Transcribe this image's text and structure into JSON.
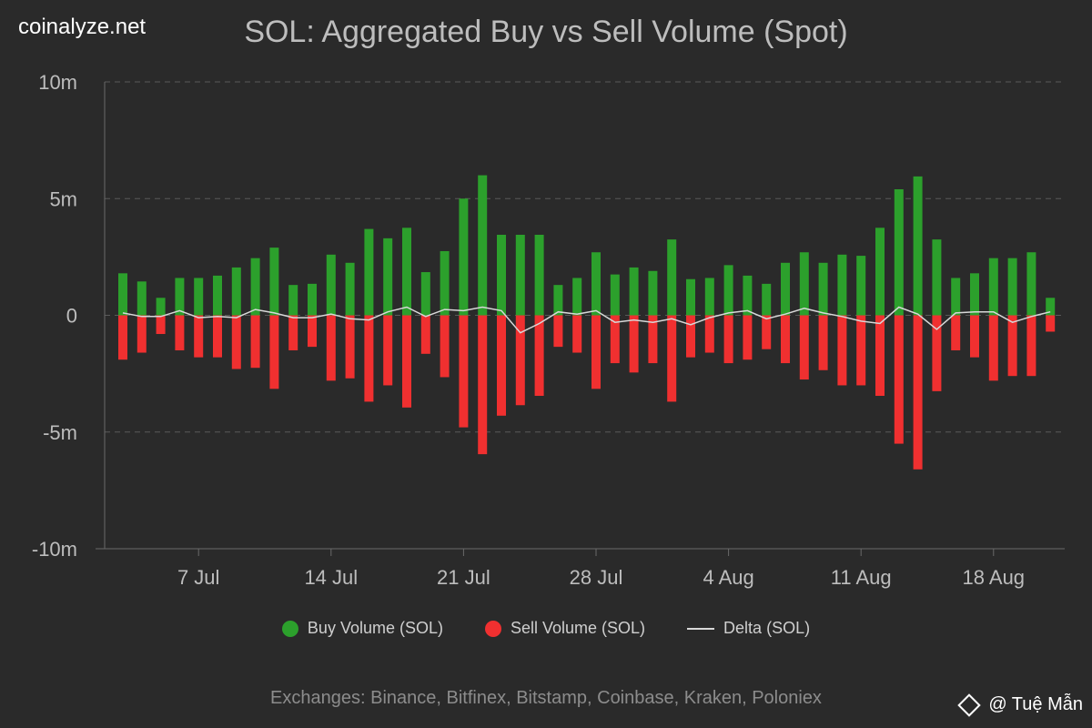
{
  "brand": "coinalyze.net",
  "title": "SOL: Aggregated Buy vs Sell Volume (Spot)",
  "exchanges": "Exchanges: Binance, Bitfinex, Bitstamp, Coinbase, Kraken, Poloniex",
  "watermark": "@ Tuệ Mẫn",
  "colors": {
    "buy": "#2ca02c",
    "sell": "#f03030",
    "delta": "#d8d8d8",
    "background": "#2a2a2a"
  },
  "legend": [
    {
      "label": "Buy Volume (SOL)",
      "kind": "dot",
      "color": "#2ca02c"
    },
    {
      "label": "Sell Volume (SOL)",
      "kind": "dot",
      "color": "#f03030"
    },
    {
      "label": "Delta (SOL)",
      "kind": "line",
      "color": "#d8d8d8"
    }
  ],
  "chart_data": {
    "type": "bar",
    "title": "SOL: Aggregated Buy vs Sell Volume (Spot)",
    "x_start": "2024-07-03",
    "x_ticks": [
      "7 Jul",
      "14 Jul",
      "21 Jul",
      "28 Jul",
      "4 Aug",
      "11 Aug",
      "18 Aug"
    ],
    "y_ticks": [
      "10m",
      "5m",
      "0",
      "-5m",
      "-10m"
    ],
    "ylim": [
      -10,
      10
    ],
    "y_unit": "m",
    "grid": true,
    "legend_position": "bottom",
    "series": [
      {
        "name": "Buy Volume (SOL)",
        "type": "bar",
        "values": [
          1.8,
          1.45,
          0.75,
          1.6,
          1.6,
          1.7,
          2.05,
          2.45,
          2.9,
          1.3,
          1.35,
          2.6,
          2.25,
          3.7,
          3.3,
          3.75,
          1.85,
          2.75,
          5.0,
          6.0,
          3.45,
          3.45,
          3.45,
          1.3,
          1.6,
          2.7,
          1.75,
          2.05,
          1.9,
          3.25,
          1.55,
          1.6,
          2.15,
          1.7,
          1.35,
          2.25,
          2.7,
          2.25,
          2.6,
          2.55,
          3.75,
          5.4,
          5.95,
          3.25,
          1.6,
          1.8,
          2.45,
          2.45,
          2.7,
          0.75
        ]
      },
      {
        "name": "Sell Volume (SOL)",
        "type": "bar",
        "values": [
          -1.9,
          -1.6,
          -0.8,
          -1.5,
          -1.8,
          -1.8,
          -2.3,
          -2.25,
          -3.15,
          -1.5,
          -1.35,
          -2.8,
          -2.7,
          -3.7,
          -3.0,
          -3.95,
          -1.65,
          -2.65,
          -4.8,
          -5.95,
          -4.3,
          -3.85,
          -3.45,
          -1.35,
          -1.6,
          -3.15,
          -2.05,
          -2.45,
          -2.05,
          -3.7,
          -1.8,
          -1.6,
          -2.05,
          -1.9,
          -1.45,
          -2.05,
          -2.75,
          -2.35,
          -3.0,
          -3.0,
          -3.45,
          -5.5,
          -6.6,
          -3.25,
          -1.5,
          -1.8,
          -2.8,
          -2.6,
          -2.6,
          -0.7
        ]
      },
      {
        "name": "Delta (SOL)",
        "type": "line",
        "values": [
          0.1,
          -0.05,
          -0.05,
          0.2,
          -0.1,
          -0.05,
          -0.1,
          0.25,
          0.1,
          -0.1,
          -0.1,
          0.05,
          -0.15,
          -0.2,
          0.15,
          0.35,
          -0.05,
          0.25,
          0.2,
          0.35,
          0.2,
          -0.75,
          -0.35,
          0.15,
          0.05,
          0.2,
          -0.3,
          -0.2,
          -0.3,
          -0.15,
          -0.4,
          -0.1,
          0.1,
          0.2,
          -0.15,
          0.05,
          0.3,
          0.1,
          -0.05,
          -0.25,
          -0.35,
          0.35,
          0.05,
          -0.6,
          0.1,
          0.15,
          0.15,
          -0.3,
          -0.05,
          0.15
        ]
      }
    ]
  }
}
